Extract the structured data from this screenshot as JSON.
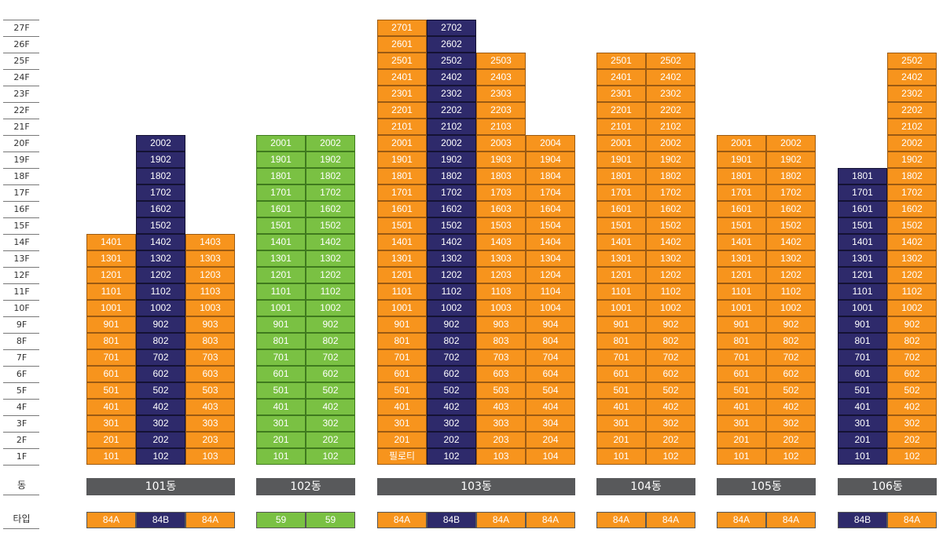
{
  "colors": {
    "orange": "#f7941d",
    "navy": "#2e2a6b",
    "green": "#7ac143",
    "bar": "#58595b"
  },
  "floors": [
    "1F",
    "2F",
    "3F",
    "4F",
    "5F",
    "6F",
    "7F",
    "8F",
    "9F",
    "10F",
    "11F",
    "12F",
    "13F",
    "14F",
    "15F",
    "16F",
    "17F",
    "18F",
    "19F",
    "20F",
    "21F",
    "22F",
    "23F",
    "24F",
    "25F",
    "26F",
    "27F"
  ],
  "row_labels": {
    "building": "동",
    "type": "타입"
  },
  "buildings": [
    {
      "name": "101동",
      "lines": [
        {
          "top": 14,
          "color": "orange",
          "type": "84A"
        },
        {
          "top": 20,
          "color": "navy",
          "type": "84B"
        },
        {
          "top": 14,
          "color": "orange",
          "type": "84A"
        }
      ]
    },
    {
      "name": "102동",
      "lines": [
        {
          "top": 20,
          "color": "green",
          "type": "59"
        },
        {
          "top": 20,
          "color": "green",
          "type": "59"
        }
      ]
    },
    {
      "name": "103동",
      "lines": [
        {
          "top": 27,
          "color": "orange",
          "type": "84A",
          "first_floor_label": "필로티"
        },
        {
          "top": 27,
          "color": "navy",
          "type": "84B"
        },
        {
          "top": 25,
          "color": "orange",
          "type": "84A"
        },
        {
          "top": 20,
          "color": "orange",
          "type": "84A"
        }
      ]
    },
    {
      "name": "104동",
      "lines": [
        {
          "top": 25,
          "color": "orange",
          "type": "84A"
        },
        {
          "top": 25,
          "color": "orange",
          "type": "84A"
        }
      ]
    },
    {
      "name": "105동",
      "lines": [
        {
          "top": 20,
          "color": "orange",
          "type": "84A"
        },
        {
          "top": 20,
          "color": "orange",
          "type": "84A"
        }
      ]
    },
    {
      "name": "106동",
      "lines": [
        {
          "top": 18,
          "color": "navy",
          "type": "84B"
        },
        {
          "top": 25,
          "color": "orange",
          "type": "84A"
        }
      ]
    }
  ]
}
